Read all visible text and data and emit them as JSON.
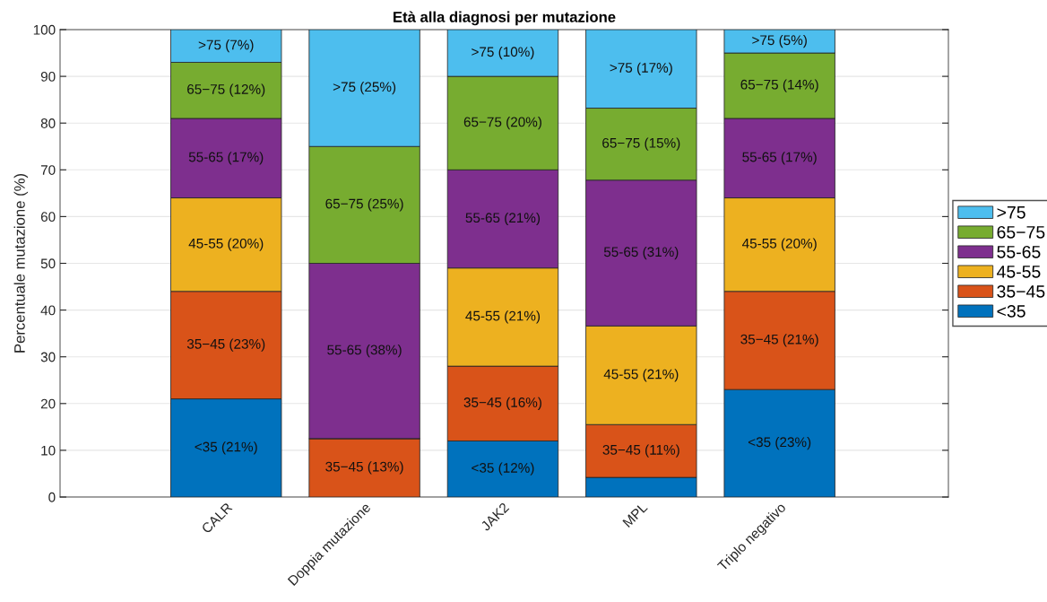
{
  "chart_data": {
    "type": "bar",
    "stacked": true,
    "title": "Età alla diagnosi per mutazione",
    "ylabel": "Percentuale mutazione (%)",
    "categories": [
      "CALR",
      "Doppia mutazione",
      "JAK2",
      "MPL",
      "Triplo negativo"
    ],
    "series": [
      {
        "name": "<35",
        "color": "#0072bd",
        "values": [
          21,
          0,
          12,
          4.2,
          23
        ],
        "value_labels": [
          "<35 (21%)",
          null,
          "<35 (12%)",
          null,
          "<35 (23%)"
        ]
      },
      {
        "name": "35−45",
        "color": "#d95319",
        "values": [
          23,
          12.5,
          16,
          11.3,
          21
        ],
        "value_labels": [
          "35−45 (23%)",
          "35−45 (13%)",
          "35−45 (16%)",
          "35−45 (11%)",
          "35−45 (21%)"
        ]
      },
      {
        "name": "45-55",
        "color": "#edb120",
        "values": [
          20,
          0,
          21,
          21.1,
          20
        ],
        "value_labels": [
          "45-55 (20%)",
          null,
          "45-55 (21%)",
          "45-55 (21%)",
          "45-55 (20%)"
        ]
      },
      {
        "name": "55-65",
        "color": "#7e2f8e",
        "values": [
          17,
          37.5,
          21,
          31.2,
          17
        ],
        "value_labels": [
          "55-65 (17%)",
          "55-65 (38%)",
          "55-65 (21%)",
          "55-65 (31%)",
          "55-65 (17%)"
        ]
      },
      {
        "name": "65−75",
        "color": "#77ac30",
        "values": [
          12,
          25,
          20,
          15.4,
          14
        ],
        "value_labels": [
          "65−75 (12%)",
          "65−75 (25%)",
          "65−75 (20%)",
          "65−75 (15%)",
          "65−75 (14%)"
        ]
      },
      {
        "name": ">75",
        "color": "#4dbeee",
        "values": [
          7,
          25,
          10,
          16.8,
          5
        ],
        "value_labels": [
          ">75 (7%)",
          ">75 (25%)",
          ">75 (10%)",
          ">75 (17%)",
          ">75 (5%)"
        ]
      }
    ],
    "ylim": [
      0,
      100
    ],
    "yticks": [
      0,
      10,
      20,
      30,
      40,
      50,
      60,
      70,
      80,
      90,
      100
    ],
    "grid": "y",
    "legend": "right"
  }
}
